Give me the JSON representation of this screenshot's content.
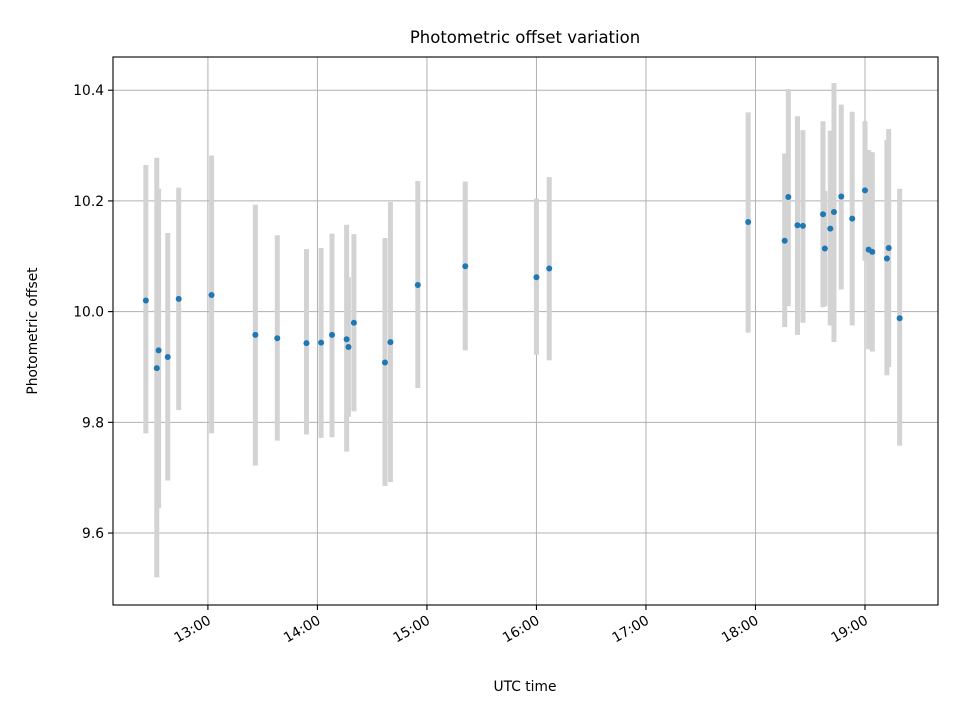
{
  "chart_data": {
    "type": "scatter",
    "title": "Photometric offset variation",
    "xlabel": "UTC time",
    "ylabel": "Photometric offset",
    "x_tick_labels": [
      "13:00",
      "14:00",
      "15:00",
      "16:00",
      "17:00",
      "18:00",
      "19:00"
    ],
    "y_tick_labels": [
      "9.6",
      "9.8",
      "10.0",
      "10.2",
      "10.4"
    ],
    "xlim": [
      "12:08",
      "19:40"
    ],
    "ylim": [
      9.47,
      10.46
    ],
    "grid": true,
    "point_color": "#1f77b4",
    "errorbar_color": "#d3d3d3",
    "series": [
      {
        "points": [
          {
            "x": "12:26",
            "y": 10.02,
            "lo": 9.78,
            "hi": 10.265
          },
          {
            "x": "12:32",
            "y": 9.898,
            "lo": 9.52,
            "hi": 10.278
          },
          {
            "x": "12:33",
            "y": 9.93,
            "lo": 9.645,
            "hi": 10.222
          },
          {
            "x": "12:38",
            "y": 9.918,
            "lo": 9.695,
            "hi": 10.142
          },
          {
            "x": "12:44",
            "y": 10.023,
            "lo": 9.822,
            "hi": 10.224
          },
          {
            "x": "13:02",
            "y": 10.03,
            "lo": 9.78,
            "hi": 10.282
          },
          {
            "x": "13:26",
            "y": 9.958,
            "lo": 9.722,
            "hi": 10.193
          },
          {
            "x": "13:38",
            "y": 9.952,
            "lo": 9.767,
            "hi": 10.138
          },
          {
            "x": "13:54",
            "y": 9.943,
            "lo": 9.778,
            "hi": 10.113
          },
          {
            "x": "14:02",
            "y": 9.944,
            "lo": 9.772,
            "hi": 10.115
          },
          {
            "x": "14:08",
            "y": 9.958,
            "lo": 9.773,
            "hi": 10.141
          },
          {
            "x": "14:16",
            "y": 9.95,
            "lo": 9.747,
            "hi": 10.157
          },
          {
            "x": "14:17",
            "y": 9.936,
            "lo": 9.81,
            "hi": 10.062
          },
          {
            "x": "14:20",
            "y": 9.98,
            "lo": 9.82,
            "hi": 10.14
          },
          {
            "x": "14:37",
            "y": 9.908,
            "lo": 9.685,
            "hi": 10.133
          },
          {
            "x": "14:40",
            "y": 9.945,
            "lo": 9.692,
            "hi": 10.198
          },
          {
            "x": "14:55",
            "y": 10.048,
            "lo": 9.862,
            "hi": 10.236
          },
          {
            "x": "15:21",
            "y": 10.082,
            "lo": 9.93,
            "hi": 10.235
          },
          {
            "x": "16:00",
            "y": 10.062,
            "lo": 9.922,
            "hi": 10.204
          },
          {
            "x": "16:07",
            "y": 10.078,
            "lo": 9.912,
            "hi": 10.243
          },
          {
            "x": "17:56",
            "y": 10.162,
            "lo": 9.962,
            "hi": 10.36
          },
          {
            "x": "18:16",
            "y": 10.128,
            "lo": 9.972,
            "hi": 10.286
          },
          {
            "x": "18:18",
            "y": 10.207,
            "lo": 10.01,
            "hi": 10.402
          },
          {
            "x": "18:23",
            "y": 10.156,
            "lo": 9.958,
            "hi": 10.353
          },
          {
            "x": "18:26",
            "y": 10.155,
            "lo": 9.98,
            "hi": 10.328
          },
          {
            "x": "18:37",
            "y": 10.176,
            "lo": 10.008,
            "hi": 10.344
          },
          {
            "x": "18:38",
            "y": 10.114,
            "lo": 10.01,
            "hi": 10.218
          },
          {
            "x": "18:41",
            "y": 10.15,
            "lo": 9.975,
            "hi": 10.327
          },
          {
            "x": "18:43",
            "y": 10.18,
            "lo": 9.945,
            "hi": 10.413
          },
          {
            "x": "18:47",
            "y": 10.208,
            "lo": 10.04,
            "hi": 10.374
          },
          {
            "x": "18:53",
            "y": 10.168,
            "lo": 9.975,
            "hi": 10.361
          },
          {
            "x": "19:00",
            "y": 10.219,
            "lo": 10.092,
            "hi": 10.344
          },
          {
            "x": "19:02",
            "y": 10.112,
            "lo": 9.932,
            "hi": 10.292
          },
          {
            "x": "19:04",
            "y": 10.108,
            "lo": 9.928,
            "hi": 10.288
          },
          {
            "x": "19:12",
            "y": 10.096,
            "lo": 9.885,
            "hi": 10.31
          },
          {
            "x": "19:13",
            "y": 10.115,
            "lo": 9.9,
            "hi": 10.33
          },
          {
            "x": "19:19",
            "y": 9.988,
            "lo": 9.758,
            "hi": 10.222
          }
        ]
      }
    ]
  }
}
